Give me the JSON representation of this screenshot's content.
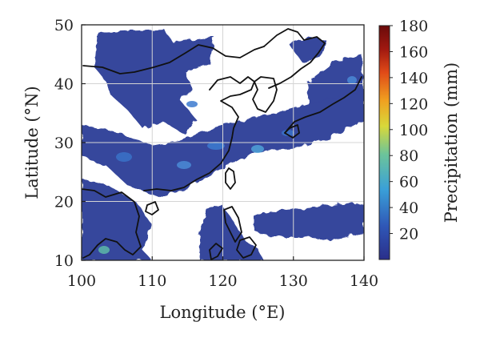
{
  "map": {
    "xlabel": "Longitude (°E)",
    "ylabel": "Latitude (°N)",
    "xlim": [
      100,
      140
    ],
    "ylim": [
      10,
      50
    ],
    "x_ticks": [
      "100",
      "110",
      "120",
      "130",
      "140"
    ],
    "y_ticks": [
      "10",
      "20",
      "30",
      "40",
      "50"
    ],
    "grid": true,
    "field_color": "#2e3f99",
    "coastline_color": "#111111",
    "colorbar": {
      "label": "Precipitation (mm)",
      "range": [
        0,
        180
      ],
      "ticks": [
        "20",
        "40",
        "60",
        "80",
        "100",
        "120",
        "140",
        "160",
        "180"
      ],
      "placement": "right",
      "colormap": [
        "#2a2f8a",
        "#2f56b6",
        "#3aa0d8",
        "#6cc49a",
        "#d8d83a",
        "#f0a020",
        "#e04a18",
        "#a01810",
        "#6a0b0b"
      ]
    }
  }
}
